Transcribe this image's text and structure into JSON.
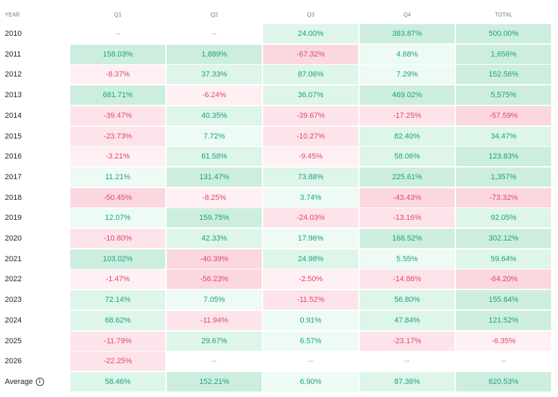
{
  "headers": [
    "YEAR",
    "Q1",
    "Q2",
    "Q3",
    "Q4",
    "TOTAL"
  ],
  "rows": [
    {
      "label": "2010",
      "cells": [
        "--",
        "--",
        "24.00%",
        "383.87%",
        "500.00%"
      ]
    },
    {
      "label": "2011",
      "cells": [
        "158.03%",
        "1,889%",
        "-67.32%",
        "4.68%",
        "1,656%"
      ]
    },
    {
      "label": "2012",
      "cells": [
        "-8.37%",
        "37.33%",
        "87.06%",
        "7.29%",
        "152.56%"
      ]
    },
    {
      "label": "2013",
      "cells": [
        "681.71%",
        "-6.24%",
        "36.07%",
        "469.02%",
        "5,575%"
      ]
    },
    {
      "label": "2014",
      "cells": [
        "-39.47%",
        "40.35%",
        "-39.67%",
        "-17.25%",
        "-57.59%"
      ]
    },
    {
      "label": "2015",
      "cells": [
        "-23.73%",
        "7.72%",
        "-10.27%",
        "82.40%",
        "34.47%"
      ]
    },
    {
      "label": "2016",
      "cells": [
        "-3.21%",
        "61.58%",
        "-9.45%",
        "58.06%",
        "123.83%"
      ]
    },
    {
      "label": "2017",
      "cells": [
        "11.21%",
        "131.47%",
        "73.88%",
        "225.61%",
        "1,357%"
      ]
    },
    {
      "label": "2018",
      "cells": [
        "-50.45%",
        "-8.25%",
        "3.74%",
        "-43.43%",
        "-73.32%"
      ]
    },
    {
      "label": "2019",
      "cells": [
        "12.07%",
        "159.75%",
        "-24.03%",
        "-13.16%",
        "92.05%"
      ]
    },
    {
      "label": "2020",
      "cells": [
        "-10.80%",
        "42.33%",
        "17.96%",
        "168.52%",
        "302.12%"
      ]
    },
    {
      "label": "2021",
      "cells": [
        "103.02%",
        "-40.39%",
        "24.98%",
        "5.55%",
        "59.64%"
      ]
    },
    {
      "label": "2022",
      "cells": [
        "-1.47%",
        "-56.23%",
        "-2.50%",
        "-14.86%",
        "-64.20%"
      ]
    },
    {
      "label": "2023",
      "cells": [
        "72.14%",
        "7.05%",
        "-11.52%",
        "56.80%",
        "155.64%"
      ]
    },
    {
      "label": "2024",
      "cells": [
        "68.62%",
        "-11.94%",
        "0.91%",
        "47.84%",
        "121.52%"
      ]
    },
    {
      "label": "2025",
      "cells": [
        "-11.79%",
        "29.67%",
        "6.57%",
        "-23.17%",
        "-6.35%"
      ]
    },
    {
      "label": "2026",
      "cells": [
        "-22.25%",
        "--",
        "--",
        "--",
        "--"
      ]
    },
    {
      "label": "Average",
      "info": true,
      "cells": [
        "58.46%",
        "152.21%",
        "6.90%",
        "87.36%",
        "620.53%"
      ]
    }
  ],
  "colors": {
    "pos_light": "#eefaf4",
    "pos_mid": "#def5ea",
    "pos_strong": "#cdeedf",
    "neg_light": "#fff0f3",
    "neg_mid": "#fde4ea",
    "neg_strong": "#fbd7e0"
  }
}
